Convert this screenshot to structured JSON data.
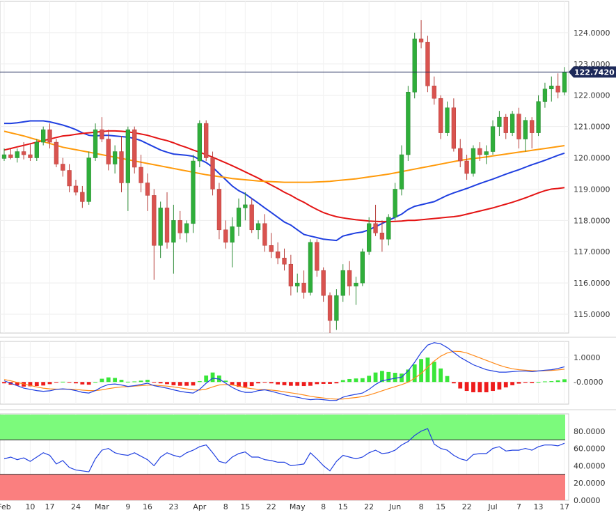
{
  "chart_data": {
    "type": "candlestick",
    "instrument_price_label": "122.7420",
    "current_price": 122.742,
    "main_y_ticks": [
      "115.0000",
      "116.0000",
      "117.0000",
      "118.0000",
      "119.0000",
      "120.0000",
      "121.0000",
      "122.0000",
      "123.0000",
      "124.0000"
    ],
    "main_ylim": [
      114.4,
      125.0
    ],
    "x_tick_labels": [
      "Feb",
      "10",
      "17",
      "24",
      "Mar",
      "9",
      "16",
      "23",
      "Apr",
      "8",
      "15",
      "22",
      "May",
      "8",
      "15",
      "22",
      "Jun",
      "8",
      "15",
      "22",
      "Jul",
      "7",
      "13",
      "17"
    ],
    "candles": [
      [
        119.98,
        120.3,
        119.9,
        120.1
      ],
      [
        120.1,
        120.28,
        119.95,
        120.0
      ],
      [
        120.0,
        120.3,
        119.85,
        120.2
      ],
      [
        120.2,
        120.5,
        119.95,
        120.1
      ],
      [
        120.1,
        120.45,
        119.9,
        120.0
      ],
      [
        120.0,
        120.6,
        119.9,
        120.5
      ],
      [
        120.5,
        121.0,
        120.4,
        120.9
      ],
      [
        120.9,
        121.1,
        120.3,
        120.5
      ],
      [
        120.5,
        120.6,
        119.7,
        119.8
      ],
      [
        119.8,
        120.0,
        119.4,
        119.6
      ],
      [
        119.6,
        119.8,
        118.9,
        119.1
      ],
      [
        119.1,
        119.3,
        118.8,
        118.9
      ],
      [
        118.9,
        119.1,
        118.4,
        118.6
      ],
      [
        118.6,
        120.2,
        118.5,
        120.0
      ],
      [
        120.0,
        121.1,
        119.9,
        120.9
      ],
      [
        120.9,
        121.3,
        120.5,
        120.6
      ],
      [
        120.6,
        120.9,
        119.6,
        119.8
      ],
      [
        119.8,
        120.4,
        119.5,
        120.2
      ],
      [
        120.2,
        120.7,
        118.9,
        119.2
      ],
      [
        119.2,
        121.0,
        118.3,
        120.9
      ],
      [
        120.9,
        121.0,
        119.5,
        119.7
      ],
      [
        119.7,
        120.1,
        118.9,
        119.2
      ],
      [
        119.2,
        119.5,
        118.3,
        118.8
      ],
      [
        118.8,
        119.0,
        116.1,
        117.2
      ],
      [
        117.2,
        118.6,
        116.8,
        118.4
      ],
      [
        118.4,
        118.9,
        117.1,
        117.3
      ],
      [
        117.3,
        118.5,
        116.3,
        118.0
      ],
      [
        118.0,
        118.3,
        117.4,
        117.6
      ],
      [
        117.6,
        118.0,
        117.3,
        117.9
      ],
      [
        117.9,
        120.1,
        117.6,
        119.9
      ],
      [
        119.9,
        121.2,
        119.7,
        121.1
      ],
      [
        121.1,
        121.2,
        119.9,
        120.0
      ],
      [
        120.0,
        120.2,
        118.8,
        119.0
      ],
      [
        119.0,
        119.2,
        117.4,
        117.7
      ],
      [
        117.7,
        118.0,
        117.1,
        117.3
      ],
      [
        117.3,
        118.1,
        116.5,
        117.8
      ],
      [
        117.8,
        118.7,
        117.5,
        118.4
      ],
      [
        118.4,
        118.9,
        118.0,
        118.5
      ],
      [
        118.5,
        118.7,
        117.6,
        117.7
      ],
      [
        117.7,
        118.0,
        117.4,
        117.9
      ],
      [
        117.9,
        118.2,
        117.0,
        117.2
      ],
      [
        117.2,
        117.6,
        116.8,
        117.0
      ],
      [
        117.0,
        117.3,
        116.6,
        116.8
      ],
      [
        116.8,
        117.1,
        116.4,
        116.6
      ],
      [
        116.6,
        116.9,
        115.6,
        115.9
      ],
      [
        115.9,
        116.3,
        115.7,
        116.0
      ],
      [
        116.0,
        116.4,
        115.5,
        115.7
      ],
      [
        115.7,
        117.4,
        115.6,
        117.3
      ],
      [
        117.3,
        117.4,
        116.2,
        116.4
      ],
      [
        116.4,
        116.5,
        115.4,
        115.6
      ],
      [
        115.6,
        115.7,
        114.4,
        114.8
      ],
      [
        114.8,
        115.8,
        114.5,
        115.6
      ],
      [
        115.6,
        116.6,
        115.4,
        116.4
      ],
      [
        116.4,
        116.7,
        115.6,
        115.9
      ],
      [
        115.9,
        116.2,
        115.3,
        116.0
      ],
      [
        116.0,
        117.1,
        115.9,
        117.0
      ],
      [
        117.0,
        118.1,
        116.9,
        117.9
      ],
      [
        117.9,
        118.5,
        117.5,
        117.6
      ],
      [
        117.6,
        118.0,
        117.0,
        117.4
      ],
      [
        117.4,
        118.2,
        117.2,
        118.1
      ],
      [
        118.1,
        119.2,
        118.0,
        119.0
      ],
      [
        119.0,
        120.4,
        118.8,
        120.1
      ],
      [
        120.1,
        122.3,
        119.9,
        122.1
      ],
      [
        122.1,
        124.0,
        121.9,
        123.8
      ],
      [
        123.8,
        124.4,
        123.5,
        123.7
      ],
      [
        123.7,
        123.9,
        122.1,
        122.3
      ],
      [
        122.3,
        122.6,
        121.7,
        121.9
      ],
      [
        121.9,
        122.0,
        120.6,
        120.8
      ],
      [
        120.8,
        121.8,
        120.7,
        121.6
      ],
      [
        121.6,
        121.9,
        120.2,
        120.3
      ],
      [
        120.3,
        120.6,
        119.7,
        119.9
      ],
      [
        119.9,
        120.1,
        119.3,
        119.5
      ],
      [
        119.5,
        120.4,
        119.4,
        120.3
      ],
      [
        120.3,
        120.5,
        119.9,
        120.1
      ],
      [
        120.1,
        120.4,
        119.8,
        120.2
      ],
      [
        120.2,
        121.2,
        120.1,
        121.0
      ],
      [
        121.0,
        121.5,
        120.7,
        121.3
      ],
      [
        121.3,
        121.4,
        120.6,
        120.8
      ],
      [
        120.8,
        121.5,
        120.7,
        121.4
      ],
      [
        121.4,
        121.6,
        120.3,
        120.6
      ],
      [
        120.6,
        121.3,
        120.2,
        121.2
      ],
      [
        121.2,
        121.3,
        120.3,
        120.8
      ],
      [
        120.8,
        122.0,
        120.7,
        121.8
      ],
      [
        121.8,
        122.4,
        121.6,
        122.2
      ],
      [
        122.2,
        122.6,
        121.8,
        122.3
      ],
      [
        122.3,
        122.7,
        121.9,
        122.1
      ],
      [
        122.1,
        122.9,
        122.0,
        122.74
      ]
    ],
    "ma_series": [
      {
        "color": "#1f3fe0",
        "values": [
          121.1,
          121.1,
          121.12,
          121.15,
          121.18,
          121.18,
          121.18,
          121.15,
          121.1,
          121.05,
          120.98,
          120.9,
          120.8,
          120.72,
          120.7,
          120.72,
          120.72,
          120.7,
          120.68,
          120.66,
          120.62,
          120.55,
          120.45,
          120.35,
          120.25,
          120.18,
          120.12,
          120.1,
          120.08,
          120.05,
          119.95,
          119.85,
          119.7,
          119.5,
          119.3,
          119.1,
          118.95,
          118.85,
          118.7,
          118.55,
          118.4,
          118.25,
          118.1,
          117.95,
          117.85,
          117.7,
          117.55,
          117.5,
          117.45,
          117.4,
          117.38,
          117.36,
          117.5,
          117.55,
          117.6,
          117.63,
          117.7,
          117.8,
          117.9,
          118.0,
          118.1,
          118.2,
          118.35,
          118.45,
          118.5,
          118.55,
          118.6,
          118.7,
          118.8,
          118.88,
          118.95,
          119.02,
          119.1,
          119.18,
          119.25,
          119.32,
          119.4,
          119.48,
          119.55,
          119.62,
          119.7,
          119.78,
          119.85,
          119.92,
          120.0,
          120.08,
          120.15
        ]
      },
      {
        "color": "#e41414",
        "values": [
          120.25,
          120.3,
          120.35,
          120.4,
          120.45,
          120.5,
          120.55,
          120.6,
          120.65,
          120.7,
          120.72,
          120.75,
          120.78,
          120.8,
          120.82,
          120.84,
          120.86,
          120.86,
          120.85,
          120.83,
          120.8,
          120.76,
          120.72,
          120.66,
          120.6,
          120.55,
          120.48,
          120.4,
          120.33,
          120.25,
          120.18,
          120.1,
          120.02,
          119.93,
          119.84,
          119.75,
          119.65,
          119.55,
          119.45,
          119.35,
          119.24,
          119.13,
          119.02,
          118.9,
          118.8,
          118.68,
          118.58,
          118.46,
          118.35,
          118.25,
          118.18,
          118.12,
          118.08,
          118.05,
          118.02,
          118.0,
          117.98,
          117.97,
          117.96,
          117.96,
          117.97,
          117.98,
          118.0,
          118.0,
          118.02,
          118.04,
          118.06,
          118.08,
          118.1,
          118.12,
          118.15,
          118.2,
          118.25,
          118.3,
          118.35,
          118.4,
          118.46,
          118.52,
          118.58,
          118.65,
          118.72,
          118.8,
          118.88,
          118.95,
          119.0,
          119.02,
          119.05
        ]
      },
      {
        "color": "#ff9a0a",
        "values": [
          120.85,
          120.8,
          120.75,
          120.7,
          120.64,
          120.58,
          120.52,
          120.46,
          120.4,
          120.34,
          120.3,
          120.26,
          120.22,
          120.18,
          120.14,
          120.1,
          120.06,
          120.02,
          119.98,
          119.94,
          119.9,
          119.86,
          119.82,
          119.78,
          119.74,
          119.7,
          119.66,
          119.62,
          119.58,
          119.54,
          119.5,
          119.46,
          119.43,
          119.4,
          119.37,
          119.34,
          119.32,
          119.3,
          119.28,
          119.26,
          119.25,
          119.24,
          119.23,
          119.22,
          119.22,
          119.22,
          119.22,
          119.22,
          119.23,
          119.24,
          119.25,
          119.27,
          119.29,
          119.31,
          119.33,
          119.36,
          119.39,
          119.42,
          119.45,
          119.48,
          119.52,
          119.56,
          119.6,
          119.64,
          119.68,
          119.72,
          119.76,
          119.8,
          119.84,
          119.88,
          119.92,
          119.95,
          119.98,
          120.0,
          120.03,
          120.06,
          120.09,
          120.12,
          120.15,
          120.18,
          120.21,
          120.24,
          120.27,
          120.3,
          120.33,
          120.36,
          120.39
        ]
      }
    ],
    "macd_y_ticks": [
      "1.0000",
      "-0.0000"
    ],
    "macd_ylim": [
      -0.9,
      1.65
    ],
    "macd_line": [
      0.05,
      -0.05,
      -0.15,
      -0.25,
      -0.3,
      -0.35,
      -0.38,
      -0.36,
      -0.3,
      -0.28,
      -0.3,
      -0.35,
      -0.42,
      -0.45,
      -0.35,
      -0.2,
      -0.1,
      -0.08,
      -0.12,
      -0.18,
      -0.15,
      -0.1,
      -0.05,
      -0.15,
      -0.2,
      -0.25,
      -0.32,
      -0.38,
      -0.42,
      -0.45,
      -0.3,
      -0.05,
      0.15,
      0.12,
      -0.05,
      -0.22,
      -0.35,
      -0.42,
      -0.42,
      -0.35,
      -0.32,
      -0.38,
      -0.45,
      -0.52,
      -0.58,
      -0.62,
      -0.68,
      -0.72,
      -0.7,
      -0.72,
      -0.75,
      -0.75,
      -0.62,
      -0.55,
      -0.5,
      -0.45,
      -0.3,
      -0.1,
      0.05,
      0.1,
      0.15,
      0.2,
      0.45,
      0.8,
      1.2,
      1.5,
      1.6,
      1.55,
      1.4,
      1.2,
      1.0,
      0.85,
      0.7,
      0.6,
      0.5,
      0.45,
      0.4,
      0.4,
      0.42,
      0.44,
      0.45,
      0.42,
      0.45,
      0.48,
      0.5,
      0.55,
      0.62
    ],
    "macd_signal": [
      0.1,
      0.05,
      -0.02,
      -0.08,
      -0.14,
      -0.2,
      -0.25,
      -0.28,
      -0.29,
      -0.29,
      -0.29,
      -0.3,
      -0.33,
      -0.35,
      -0.35,
      -0.32,
      -0.27,
      -0.23,
      -0.2,
      -0.19,
      -0.17,
      -0.15,
      -0.13,
      -0.13,
      -0.15,
      -0.17,
      -0.2,
      -0.24,
      -0.28,
      -0.32,
      -0.33,
      -0.29,
      -0.2,
      -0.12,
      -0.1,
      -0.12,
      -0.17,
      -0.23,
      -0.27,
      -0.3,
      -0.31,
      -0.33,
      -0.36,
      -0.4,
      -0.44,
      -0.48,
      -0.53,
      -0.58,
      -0.62,
      -0.65,
      -0.68,
      -0.7,
      -0.69,
      -0.66,
      -0.63,
      -0.59,
      -0.53,
      -0.45,
      -0.36,
      -0.27,
      -0.19,
      -0.11,
      -0.01,
      0.15,
      0.35,
      0.6,
      0.85,
      1.05,
      1.18,
      1.25,
      1.24,
      1.18,
      1.08,
      0.98,
      0.88,
      0.78,
      0.68,
      0.6,
      0.54,
      0.5,
      0.48,
      0.46,
      0.45,
      0.46,
      0.47,
      0.49,
      0.52
    ],
    "rsi_y_ticks": [
      "0.0000",
      "20.0000",
      "40.0000",
      "60.0000",
      "80.0000"
    ],
    "rsi_ylim": [
      0,
      100
    ],
    "rsi_zones": {
      "overbought": 70,
      "oversold": 30
    },
    "rsi_values": [
      48,
      50,
      47,
      49,
      45,
      50,
      55,
      52,
      42,
      46,
      38,
      35,
      34,
      33,
      48,
      58,
      60,
      55,
      53,
      52,
      55,
      51,
      47,
      40,
      50,
      55,
      52,
      50,
      55,
      58,
      62,
      64,
      55,
      45,
      43,
      50,
      54,
      56,
      50,
      50,
      47,
      46,
      44,
      44,
      40,
      41,
      42,
      55,
      48,
      40,
      34,
      45,
      52,
      50,
      48,
      50,
      55,
      58,
      54,
      55,
      58,
      64,
      68,
      75,
      80,
      83,
      65,
      60,
      58,
      52,
      48,
      46,
      53,
      54,
      54,
      60,
      62,
      57,
      58,
      58,
      60,
      58,
      62,
      64,
      64,
      63,
      66
    ]
  }
}
